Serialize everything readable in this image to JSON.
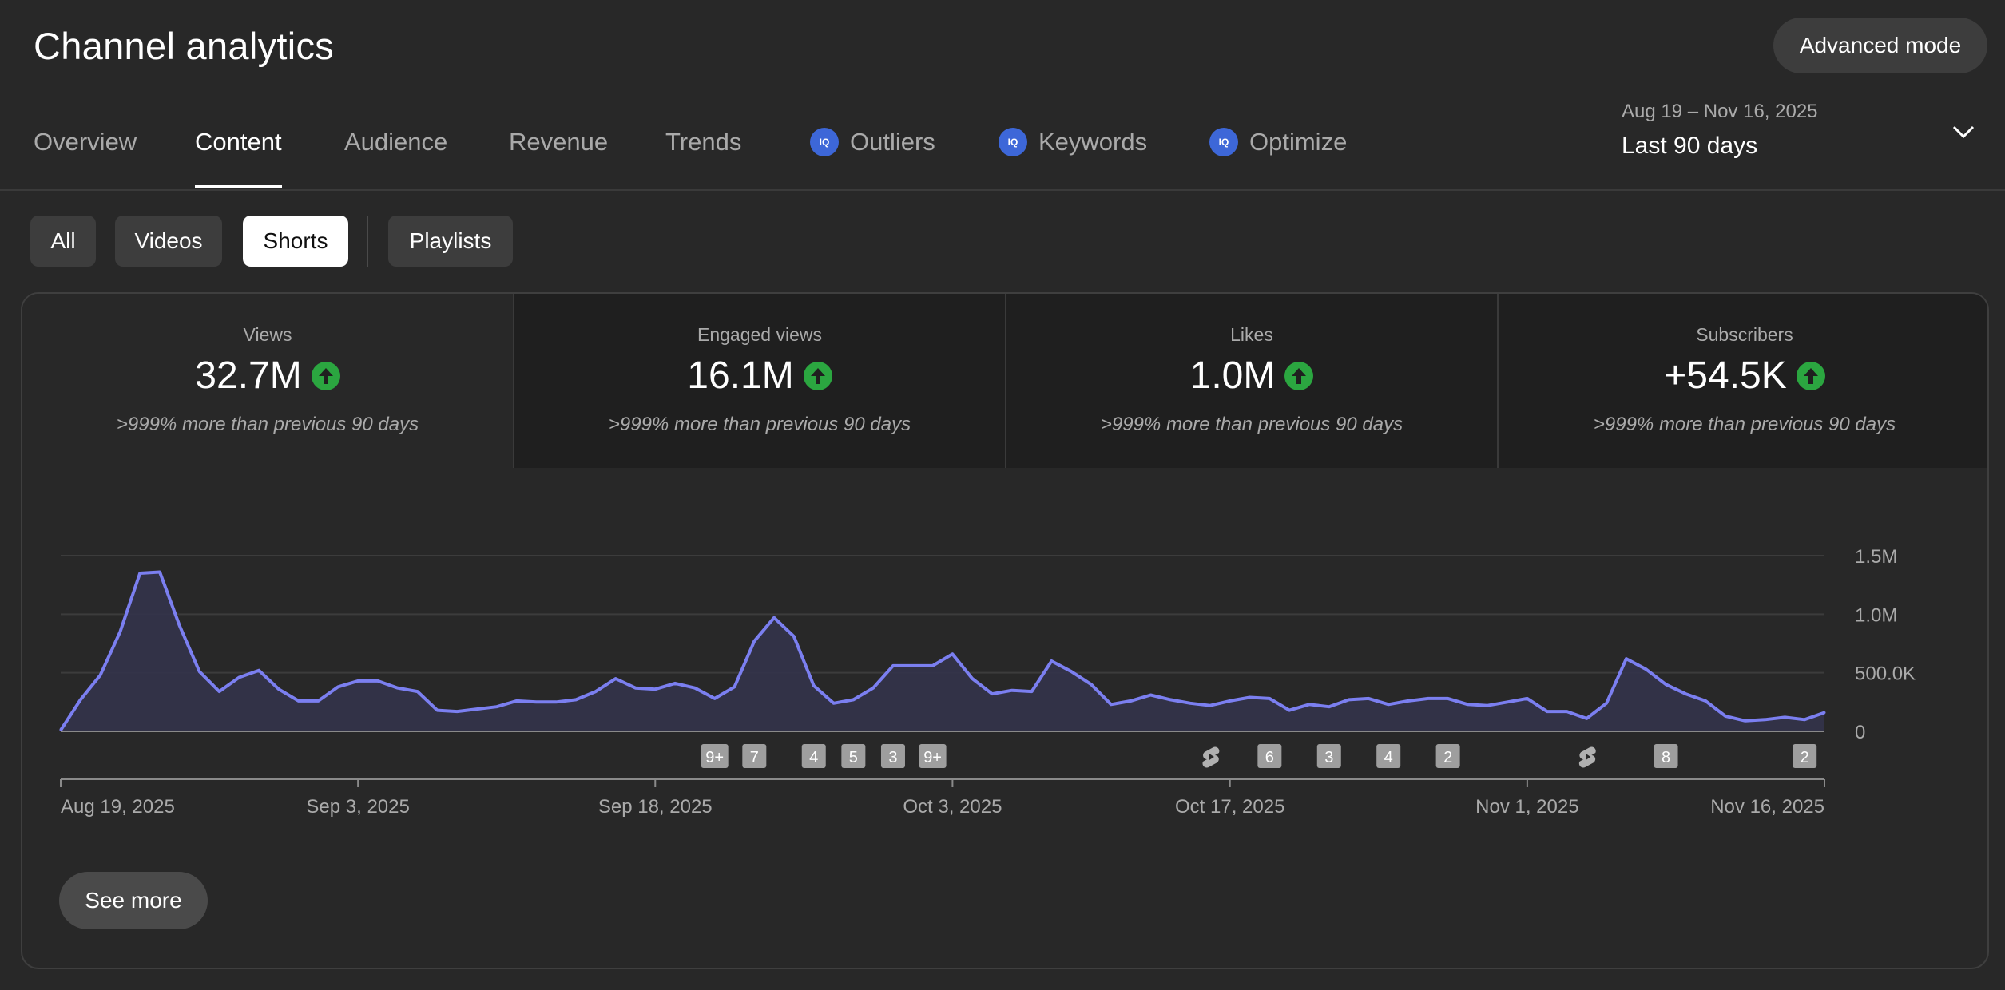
{
  "header": {
    "title": "Channel analytics",
    "advanced_mode_label": "Advanced mode"
  },
  "date_range": {
    "dates": "Aug 19 – Nov 16, 2025",
    "period": "Last 90 days"
  },
  "tabs": [
    {
      "label": "Overview",
      "active": false,
      "iq": false
    },
    {
      "label": "Content",
      "active": true,
      "iq": false
    },
    {
      "label": "Audience",
      "active": false,
      "iq": false
    },
    {
      "label": "Revenue",
      "active": false,
      "iq": false
    },
    {
      "label": "Trends",
      "active": false,
      "iq": false
    },
    {
      "label": "Outliers",
      "active": false,
      "iq": true
    },
    {
      "label": "Keywords",
      "active": false,
      "iq": true
    },
    {
      "label": "Optimize",
      "active": false,
      "iq": true
    }
  ],
  "iq_badge_text": "IQ",
  "filters": [
    {
      "label": "All",
      "selected": false
    },
    {
      "label": "Videos",
      "selected": false
    },
    {
      "label": "Shorts",
      "selected": true
    },
    {
      "label": "Playlists",
      "selected": false
    }
  ],
  "metrics": [
    {
      "label": "Views",
      "value": "32.7M",
      "note": ">999% more than previous 90 days",
      "active": true
    },
    {
      "label": "Engaged views",
      "value": "16.1M",
      "note": ">999% more than previous 90 days",
      "active": false
    },
    {
      "label": "Likes",
      "value": "1.0M",
      "note": ">999% more than previous 90 days",
      "active": false
    },
    {
      "label": "Subscribers",
      "value": "+54.5K",
      "note": ">999% more than previous 90 days",
      "active": false
    }
  ],
  "colors": {
    "line": "#7b7ff0",
    "area": "#33334a",
    "positive": "#2ba640",
    "badge": "#9e9e9e"
  },
  "chart_data": {
    "type": "area",
    "y_ticks": [
      {
        "value": 0,
        "label": "0"
      },
      {
        "value": 500000,
        "label": "500.0K"
      },
      {
        "value": 1000000,
        "label": "1.0M"
      },
      {
        "value": 1500000,
        "label": "1.5M"
      }
    ],
    "ylim": [
      0,
      1500000
    ],
    "x_ticks": [
      {
        "day": 0,
        "label": "Aug 19, 2025"
      },
      {
        "day": 15,
        "label": "Sep 3, 2025"
      },
      {
        "day": 30,
        "label": "Sep 18, 2025"
      },
      {
        "day": 45,
        "label": "Oct 3, 2025"
      },
      {
        "day": 59,
        "label": "Oct 17, 2025"
      },
      {
        "day": 74,
        "label": "Nov 1, 2025"
      },
      {
        "day": 89,
        "label": "Nov 16, 2025"
      }
    ],
    "series": [
      {
        "values": [
          10000,
          270000,
          480000,
          850000,
          1350000,
          1360000,
          900000,
          510000,
          340000,
          460000,
          520000,
          360000,
          260000,
          260000,
          380000,
          430000,
          430000,
          370000,
          340000,
          180000,
          170000,
          190000,
          210000,
          260000,
          250000,
          250000,
          270000,
          340000,
          450000,
          370000,
          360000,
          410000,
          370000,
          280000,
          380000,
          770000,
          970000,
          810000,
          390000,
          240000,
          270000,
          370000,
          560000,
          560000,
          560000,
          660000,
          450000,
          320000,
          350000,
          340000,
          600000,
          510000,
          400000,
          230000,
          260000,
          310000,
          270000,
          240000,
          220000,
          260000,
          290000,
          280000,
          180000,
          230000,
          210000,
          270000,
          280000,
          230000,
          260000,
          280000,
          280000,
          230000,
          220000,
          250000,
          280000,
          170000,
          170000,
          110000,
          240000,
          620000,
          530000,
          400000,
          320000,
          260000,
          130000,
          90000,
          100000,
          120000,
          100000,
          160000
        ]
      }
    ],
    "markers": [
      {
        "day": 33,
        "label": "9+"
      },
      {
        "day": 35,
        "label": "7"
      },
      {
        "day": 38,
        "label": "4"
      },
      {
        "day": 40,
        "label": "5"
      },
      {
        "day": 42,
        "label": "3"
      },
      {
        "day": 44,
        "label": "9+"
      },
      {
        "day": 58,
        "label": "",
        "icon": "shorts-icon"
      },
      {
        "day": 61,
        "label": "6"
      },
      {
        "day": 64,
        "label": "3"
      },
      {
        "day": 67,
        "label": "4"
      },
      {
        "day": 70,
        "label": "2"
      },
      {
        "day": 77,
        "label": "",
        "icon": "shorts-icon"
      },
      {
        "day": 81,
        "label": "8"
      },
      {
        "day": 88,
        "label": "2"
      }
    ]
  },
  "see_more_label": "See more"
}
